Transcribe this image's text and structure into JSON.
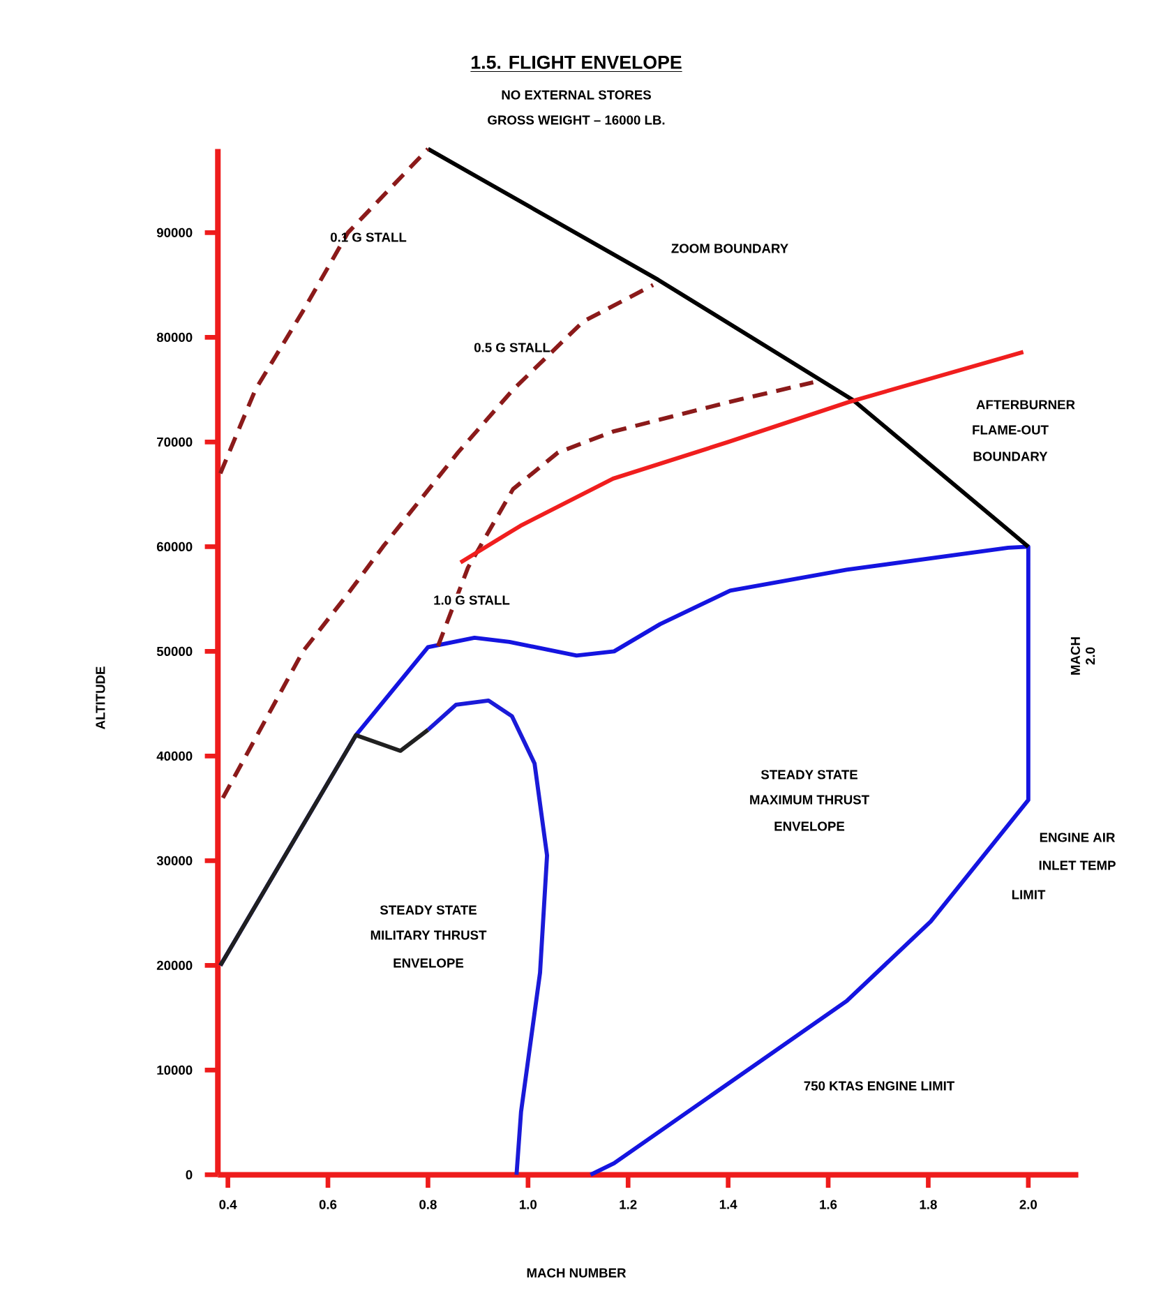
{
  "chart_data": {
    "type": "line",
    "title": "1.5. FLIGHT ENVELOPE",
    "subtitle": "NO EXTERNAL STORES",
    "xlabel": "MACH NUMBER",
    "ylabel": "ALTITUDE",
    "xlim": [
      0.38,
      2.1
    ],
    "ylim": [
      0,
      98000
    ],
    "xticks": [
      0.4,
      0.6,
      0.8,
      {
        "value": 1.0,
        "label": "1.0"
      },
      1.2,
      1.4,
      1.6,
      1.8,
      {
        "value": 2.0,
        "label": "2.0"
      }
    ],
    "yticks": [
      0,
      10000,
      20000,
      30000,
      40000,
      50000,
      60000,
      70000,
      80000,
      90000
    ],
    "series": [
      {
        "color": "#1414e0",
        "x": [
          1.125,
          1.172,
          1.637,
          1.805,
          2.0,
          2.0,
          1.96,
          1.637,
          1.404,
          1.264,
          1.172,
          1.097,
          0.963,
          0.893,
          0.8,
          0.656,
          0.385
        ],
        "values": [
          0,
          1100,
          16600,
          24200,
          35800,
          60000,
          59900,
          57800,
          55800,
          52600,
          50000,
          49600,
          50900,
          51300,
          50400,
          42000,
          20000
        ]
      },
      {
        "color": "#1a1ad8",
        "x": [
          0.977,
          0.986,
          1.024,
          1.038,
          1.013,
          0.968,
          0.921,
          0.856,
          0.8
        ],
        "values": [
          0,
          6000,
          19300,
          30500,
          39300,
          43800,
          45300,
          44900,
          42500
        ]
      },
      {
        "color": "#202020",
        "x": [
          0.385,
          0.656,
          0.745,
          0.8
        ],
        "values": [
          20000,
          42000,
          40500,
          42500
        ]
      },
      {
        "color": "#000000",
        "x": [
          0.8,
          1.26,
          1.65,
          2.0
        ],
        "values": [
          98000,
          85500,
          74000,
          60000
        ]
      },
      {
        "color": "#8b1a1a",
        "line_style": "dashed",
        "x": [
          0.385,
          0.455,
          0.55,
          0.64,
          0.8
        ],
        "values": [
          67000,
          75000,
          82500,
          90000,
          98000
        ]
      },
      {
        "color": "#8b1a1a",
        "line_style": "dashed",
        "x": [
          0.39,
          0.55,
          0.64,
          0.71,
          0.86,
          0.97,
          1.11,
          1.25
        ],
        "values": [
          36000,
          50000,
          55500,
          60000,
          69000,
          75000,
          81500,
          85000
        ]
      },
      {
        "color": "#8b1a1a",
        "line_style": "dashed",
        "x": [
          0.82,
          0.88,
          0.97,
          1.06,
          1.17,
          1.4,
          1.57
        ],
        "values": [
          50500,
          58000,
          65500,
          69000,
          71000,
          73800,
          75700
        ]
      },
      {
        "color": "#f01e1e",
        "x": [
          0.865,
          0.985,
          1.17,
          1.4,
          1.64,
          1.99
        ],
        "values": [
          58500,
          62000,
          66500,
          70000,
          73800,
          78600
        ]
      }
    ],
    "annotations": [
      "GROSS WEIGHT – 16000 LB.",
      "0.1 G STALL",
      "ZOOM BOUNDARY",
      "0.5 G STALL",
      "AFTERBURNER",
      "FLAME-OUT",
      "BOUNDARY",
      "1.0 G STALL",
      "MACH 2.0",
      "STEADY STATE",
      "MAXIMUM THRUST",
      "ENVELOPE",
      "ENGINE AIR",
      "INLET TEMP",
      "LIMIT",
      "STEADY STATE",
      "MILITARY THRUST",
      "ENVELOPE",
      "750 KTAS ENGINE LIMIT"
    ]
  }
}
